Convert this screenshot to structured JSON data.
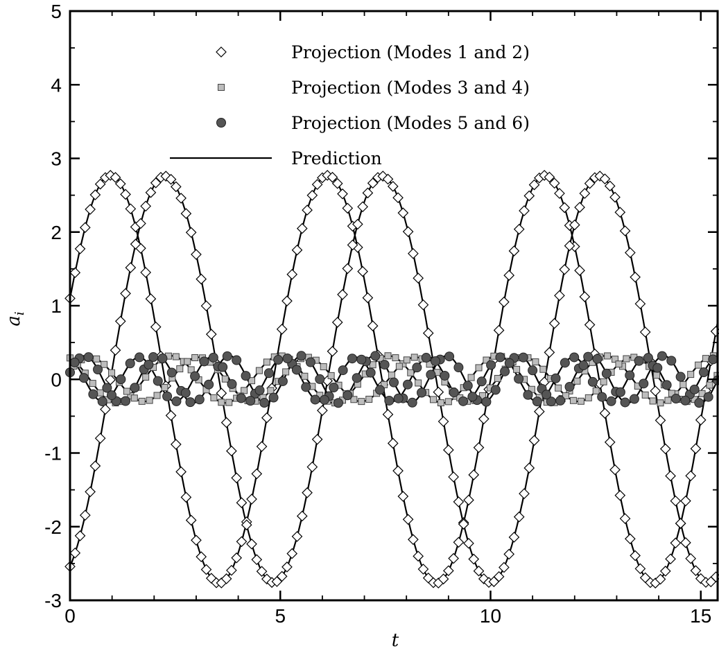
{
  "chart_data": {
    "type": "line",
    "xlabel": "t",
    "ylabel": "a_i",
    "xlim": [
      0,
      15.4
    ],
    "ylim": [
      -3,
      5
    ],
    "xticks": [
      0,
      5,
      10,
      15
    ],
    "yticks": [
      -3,
      -2,
      -1,
      0,
      1,
      2,
      3,
      4,
      5
    ],
    "xtick_labels": [
      "0",
      "5",
      "10",
      "15"
    ],
    "ytick_labels": [
      "-3",
      "-2",
      "-1",
      "0",
      "1",
      "2",
      "3",
      "4",
      "5"
    ],
    "grid": false,
    "legend_position": "top-center",
    "legend": [
      {
        "label": "Projection (Modes 1 and 2)",
        "marker": "diamond"
      },
      {
        "label": "Projection (Modes 3 and 4)",
        "marker": "square"
      },
      {
        "label": "Projection (Modes 5 and 6)",
        "marker": "circle"
      },
      {
        "label": "Prediction",
        "marker": "line"
      }
    ],
    "series": [
      {
        "group": "Projection (Modes 1 and 2)",
        "amplitude": 2.77,
        "omega": 1.2166,
        "phase": 0.4,
        "sample_dt": 0.12,
        "sample_offset": 0.0
      },
      {
        "group": "Projection (Modes 1 and 2)",
        "amplitude": 2.76,
        "omega": 1.2166,
        "phase": -1.17,
        "sample_dt": 0.12,
        "sample_offset": 0.0
      },
      {
        "group": "Projection (Modes 3 and 4)",
        "amplitude": 0.32,
        "omega": 2.433,
        "phase": 2.0,
        "sample_dt": 0.18,
        "sample_offset": 0.0
      },
      {
        "group": "Projection (Modes 3 and 4)",
        "amplitude": 0.3,
        "omega": 2.433,
        "phase": 0.43,
        "sample_dt": 0.18,
        "sample_offset": 0.09
      },
      {
        "group": "Projection (Modes 5 and 6)",
        "amplitude": 0.32,
        "omega": 3.65,
        "phase": 0.3,
        "sample_dt": 0.22,
        "sample_offset": 0.0
      },
      {
        "group": "Projection (Modes 5 and 6)",
        "amplitude": 0.3,
        "omega": 3.65,
        "phase": 1.87,
        "sample_dt": 0.22,
        "sample_offset": 0.11
      }
    ],
    "prediction_initial_transient": {
      "series_index": 0,
      "start_value": 1.1,
      "decay": 6.0
    }
  },
  "colors": {
    "diamond_fill": "#ffffff",
    "square_fill": "#bdbdbd",
    "circle_fill": "#555555",
    "line": "#000000"
  }
}
